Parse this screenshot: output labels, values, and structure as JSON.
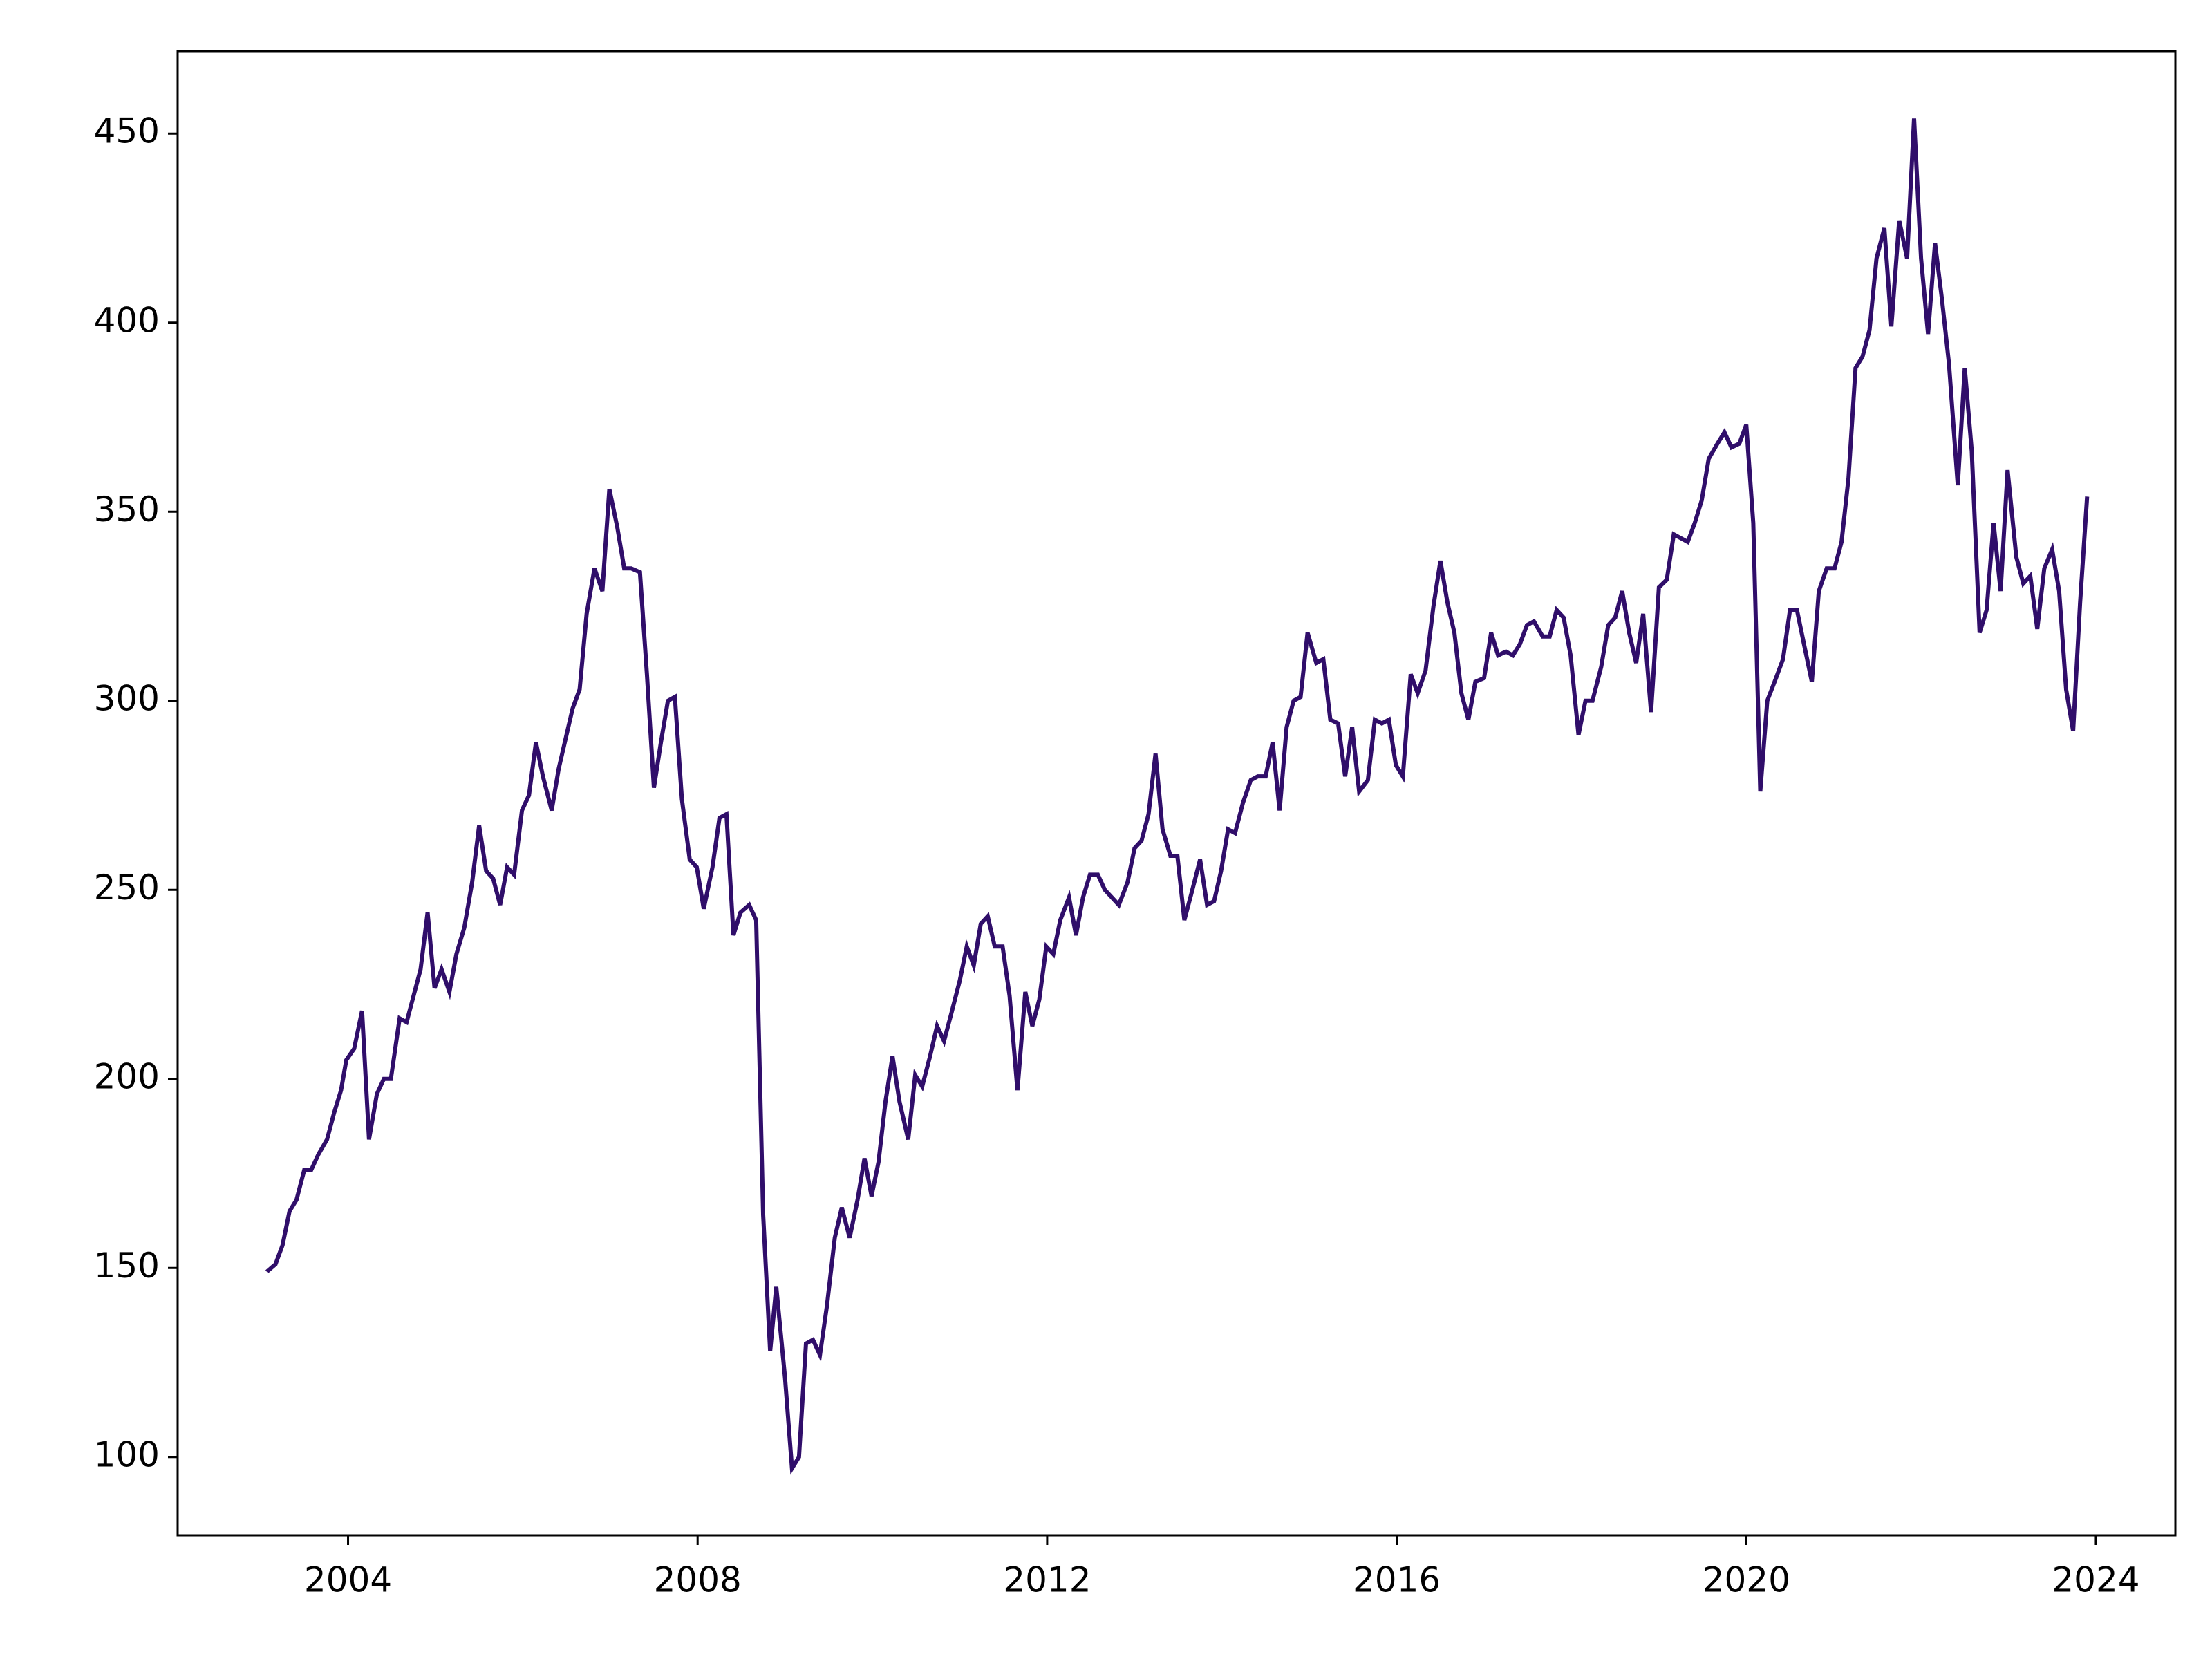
{
  "chart_data": {
    "type": "line",
    "x": [
      2003.07,
      2003.17,
      2003.25,
      2003.33,
      2003.41,
      2003.5,
      2003.58,
      2003.66,
      2003.76,
      2003.84,
      2003.92,
      2003.98,
      2004.07,
      2004.16,
      2004.24,
      2004.33,
      2004.41,
      2004.49,
      2004.59,
      2004.67,
      2004.75,
      2004.83,
      2004.91,
      2004.99,
      2005.07,
      2005.16,
      2005.24,
      2005.33,
      2005.42,
      2005.5,
      2005.58,
      2005.66,
      2005.74,
      2005.82,
      2005.9,
      2005.99,
      2006.07,
      2006.15,
      2006.23,
      2006.33,
      2006.41,
      2006.49,
      2006.57,
      2006.65,
      2006.73,
      2006.82,
      2006.91,
      2006.99,
      2007.08,
      2007.16,
      2007.24,
      2007.34,
      2007.42,
      2007.5,
      2007.58,
      2007.66,
      2007.74,
      2007.82,
      2007.91,
      2007.99,
      2008.07,
      2008.17,
      2008.25,
      2008.33,
      2008.41,
      2008.49,
      2008.59,
      2008.67,
      2008.75,
      2008.83,
      2008.9,
      2009.0,
      2009.08,
      2009.16,
      2009.24,
      2009.32,
      2009.4,
      2009.48,
      2009.57,
      2009.65,
      2009.74,
      2009.83,
      2009.91,
      2009.99,
      2010.07,
      2010.15,
      2010.23,
      2010.31,
      2010.41,
      2010.49,
      2010.57,
      2010.66,
      2010.74,
      2010.82,
      2010.9,
      2011.0,
      2011.08,
      2011.16,
      2011.24,
      2011.32,
      2011.4,
      2011.49,
      2011.57,
      2011.66,
      2011.75,
      2011.83,
      2011.91,
      2011.99,
      2012.07,
      2012.15,
      2012.25,
      2012.33,
      2012.41,
      2012.49,
      2012.58,
      2012.66,
      2012.74,
      2012.82,
      2012.92,
      2013.0,
      2013.08,
      2013.16,
      2013.24,
      2013.32,
      2013.41,
      2013.49,
      2013.57,
      2013.65,
      2013.75,
      2013.83,
      2013.91,
      2013.99,
      2014.07,
      2014.15,
      2014.24,
      2014.33,
      2014.41,
      2014.5,
      2014.58,
      2014.66,
      2014.74,
      2014.82,
      2014.9,
      2014.98,
      2015.08,
      2015.16,
      2015.24,
      2015.33,
      2015.41,
      2015.49,
      2015.57,
      2015.67,
      2015.75,
      2015.83,
      2015.91,
      2015.99,
      2016.07,
      2016.16,
      2016.24,
      2016.33,
      2016.42,
      2016.5,
      2016.58,
      2016.66,
      2016.74,
      2016.82,
      2016.9,
      2017.0,
      2017.08,
      2017.16,
      2017.25,
      2017.33,
      2017.41,
      2017.49,
      2017.57,
      2017.67,
      2017.75,
      2017.83,
      2017.91,
      2017.99,
      2018.08,
      2018.16,
      2018.24,
      2018.34,
      2018.42,
      2018.5,
      2018.58,
      2018.66,
      2018.74,
      2018.82,
      2018.91,
      2019.0,
      2019.09,
      2019.17,
      2019.25,
      2019.33,
      2019.41,
      2019.49,
      2019.57,
      2019.67,
      2019.75,
      2019.83,
      2019.92,
      2020.0,
      2020.08,
      2020.16,
      2020.24,
      2020.34,
      2020.42,
      2020.5,
      2020.58,
      2020.66,
      2020.75,
      2020.83,
      2020.92,
      2021.01,
      2021.09,
      2021.17,
      2021.25,
      2021.33,
      2021.41,
      2021.49,
      2021.58,
      2021.66,
      2021.75,
      2021.84,
      2021.92,
      2022.0,
      2022.08,
      2022.16,
      2022.24,
      2022.32,
      2022.42,
      2022.5,
      2022.58,
      2022.67,
      2022.75,
      2022.83,
      2022.91,
      2022.99,
      2023.09,
      2023.17,
      2023.25,
      2023.33,
      2023.41,
      2023.5,
      2023.58,
      2023.66,
      2023.74,
      2023.82,
      2023.9
    ],
    "series": [
      {
        "color": "#300e6a",
        "values": [
          149,
          151,
          156,
          165,
          168,
          176,
          176,
          180,
          184,
          191,
          197,
          205,
          208,
          218,
          184,
          196,
          200,
          200,
          216,
          215,
          222,
          229,
          244,
          224,
          229,
          223,
          233,
          240,
          252,
          267,
          255,
          253,
          246,
          256,
          254,
          271,
          275,
          289,
          280,
          271,
          282,
          290,
          298,
          303,
          323,
          335,
          329,
          356,
          346,
          335,
          335,
          334,
          307,
          277,
          289,
          300,
          301,
          274,
          258,
          256,
          245,
          256,
          269,
          270,
          238,
          244,
          246,
          242,
          164,
          128,
          145,
          121,
          97,
          100,
          130,
          131,
          127,
          140,
          158,
          166,
          158,
          168,
          179,
          169,
          178,
          194,
          206,
          194,
          184,
          201,
          198,
          206,
          214,
          210,
          217,
          226,
          235,
          230,
          241,
          243,
          235,
          235,
          222,
          197,
          223,
          214,
          221,
          235,
          233,
          242,
          248,
          238,
          248,
          254,
          254,
          250,
          248,
          246,
          252,
          261,
          263,
          270,
          286,
          266,
          259,
          259,
          242,
          249,
          258,
          246,
          247,
          255,
          266,
          265,
          273,
          279,
          280,
          280,
          289,
          271,
          293,
          300,
          301,
          318,
          310,
          311,
          295,
          294,
          280,
          293,
          276,
          279,
          295,
          294,
          295,
          283,
          280,
          307,
          302,
          308,
          325,
          337,
          326,
          318,
          302,
          295,
          305,
          306,
          318,
          312,
          313,
          312,
          315,
          320,
          321,
          317,
          317,
          324,
          322,
          312,
          291,
          300,
          300,
          309,
          320,
          322,
          329,
          318,
          310,
          323,
          297,
          330,
          332,
          344,
          343,
          342,
          347,
          353,
          364,
          368,
          371,
          367,
          368,
          373,
          347,
          276,
          300,
          306,
          311,
          324,
          324,
          315,
          305,
          329,
          335,
          335,
          342,
          359,
          388,
          391,
          398,
          417,
          425,
          399,
          427,
          417,
          454,
          417,
          397,
          421,
          406,
          389,
          357,
          388,
          366,
          318,
          324,
          347,
          329,
          361,
          338,
          331,
          333,
          319,
          335,
          340,
          329,
          303,
          292,
          326,
          354
        ]
      }
    ],
    "xlim": [
      2002.05,
      2024.91
    ],
    "xticks": [
      2004,
      2008,
      2012,
      2016,
      2020,
      2024
    ],
    "ylim": [
      79.3,
      471.8
    ],
    "yticks": [
      100,
      150,
      200,
      250,
      300,
      350,
      400,
      450
    ]
  }
}
